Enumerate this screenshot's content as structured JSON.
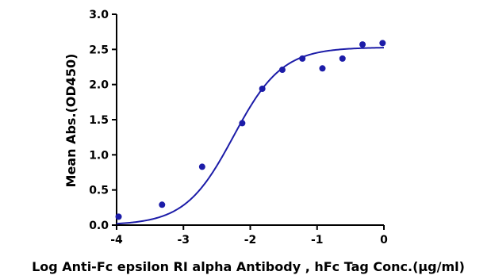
{
  "chart_data": {
    "type": "scatter",
    "xlabel": "Log Anti-Fc epsilon RI alpha Antibody , hFc Tag Conc.(μg/ml)",
    "ylabel": "Mean Abs.(OD450)",
    "xlim": [
      -4,
      0
    ],
    "ylim": [
      0.0,
      3.0
    ],
    "x_ticks": [
      "-4",
      "-3",
      "-2",
      "-1",
      "0"
    ],
    "y_ticks": [
      "0.0",
      "0.5",
      "1.0",
      "1.5",
      "2.0",
      "2.5",
      "3.0"
    ],
    "points": [
      {
        "x": -3.97,
        "y": 0.12
      },
      {
        "x": -3.32,
        "y": 0.29
      },
      {
        "x": -2.72,
        "y": 0.83
      },
      {
        "x": -2.12,
        "y": 1.45
      },
      {
        "x": -1.82,
        "y": 1.94
      },
      {
        "x": -1.52,
        "y": 2.21
      },
      {
        "x": -1.22,
        "y": 2.37
      },
      {
        "x": -0.92,
        "y": 2.23
      },
      {
        "x": -0.62,
        "y": 2.37
      },
      {
        "x": -0.32,
        "y": 2.57
      },
      {
        "x": -0.02,
        "y": 2.59
      }
    ],
    "fit": {
      "model": "4PL",
      "bottom": 0.0,
      "top": 2.53,
      "log_ec50": -2.25,
      "hill": 1.2
    },
    "series_color": "#1c1ca8",
    "grid": false,
    "legend": "none"
  }
}
